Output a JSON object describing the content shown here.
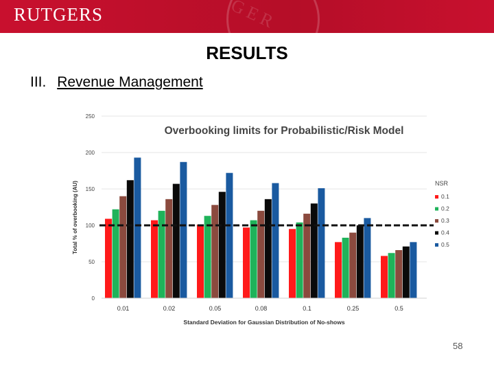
{
  "header": {
    "brand": "RUTGERS"
  },
  "slide": {
    "title": "RESULTS",
    "section_number": "III.",
    "section_label": "Revenue Management",
    "page_number": "58"
  },
  "chart_data": {
    "type": "bar",
    "title": "Overbooking limits for Probabilistic/Risk Model",
    "xlabel": "Standard Deviation for Gaussian Distribution of No-shows",
    "ylabel": "Total % of overbooking (AU)",
    "categories": [
      "0.01",
      "0.02",
      "0.05",
      "0.08",
      "0.1",
      "0.25",
      "0.5"
    ],
    "ylim": [
      0,
      250
    ],
    "yticks": [
      0,
      50,
      100,
      150,
      200,
      250
    ],
    "legend_title": "NSR",
    "legend_position": "right",
    "reference_line": 100,
    "series": [
      {
        "name": "0.1",
        "color": "#ff1a1a",
        "values": [
          109,
          107,
          101,
          97,
          95,
          77,
          58
        ]
      },
      {
        "name": "0.2",
        "color": "#1fb35a",
        "values": [
          122,
          120,
          113,
          107,
          104,
          83,
          62
        ]
      },
      {
        "name": "0.3",
        "color": "#8b4a3e",
        "values": [
          140,
          136,
          128,
          120,
          116,
          90,
          66
        ]
      },
      {
        "name": "0.4",
        "color": "#0a0a0a",
        "values": [
          162,
          157,
          146,
          136,
          130,
          100,
          71
        ]
      },
      {
        "name": "0.5",
        "color": "#1a5aa0",
        "values": [
          193,
          187,
          172,
          158,
          151,
          110,
          77
        ]
      }
    ]
  }
}
